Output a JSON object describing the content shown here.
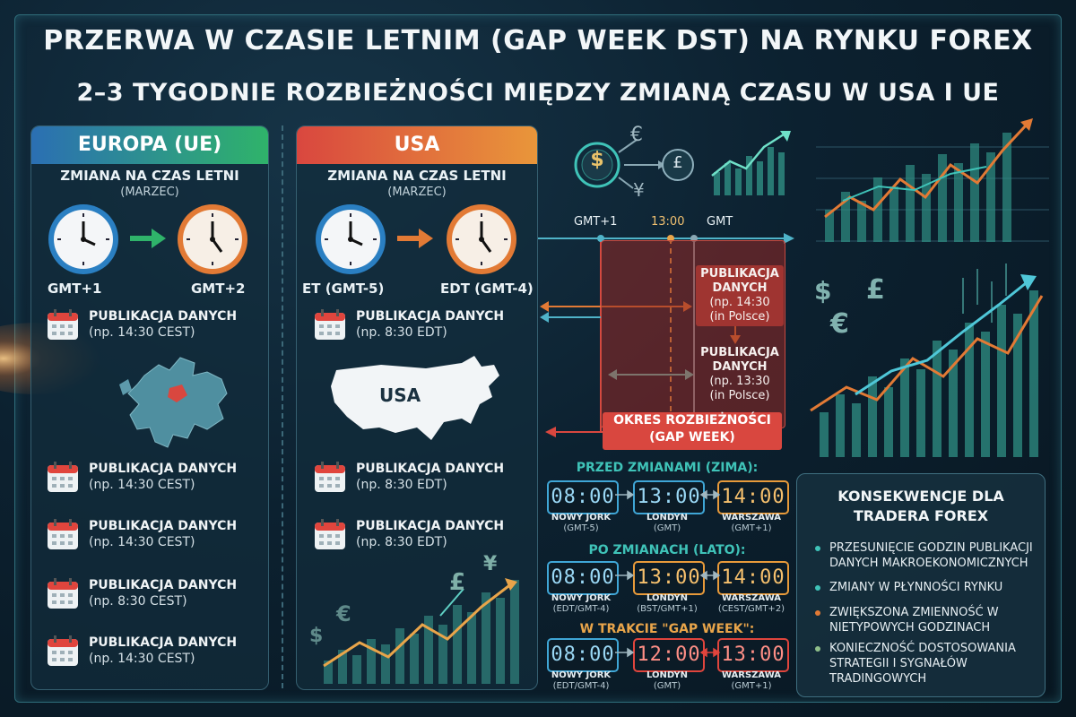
{
  "title": "PRZERWA W CZASIE LETNIM (GAP WEEK DST) NA RYNKU FOREX",
  "subtitle": "2–3 TYGODNIE ROZBIEŻNOŚCI MIĘDZY ZMIANĄ CZASU W USA I UE",
  "colors": {
    "green": "#2fb36a",
    "orange": "#e27a35",
    "red": "#d9473f",
    "teal": "#3fc3b8",
    "blue": "#3fa6d6"
  },
  "europe": {
    "header": "EUROPA (UE)",
    "change_label": "ZMIANA NA CZAS LETNI",
    "month": "(MARZEC)",
    "tz_from": "GMT+1",
    "tz_to": "GMT+2",
    "map_icon": "europe-map-icon",
    "publications": [
      {
        "title": "PUBLIKACJA DANYCH",
        "time": "(np. 14:30 CEST)"
      },
      {
        "title": "PUBLIKACJA DANYCH",
        "time": "(np. 14:30 CEST)"
      },
      {
        "title": "PUBLIKACJA DANYCH",
        "time": "(np. 14:30 CEST)"
      },
      {
        "title": "PUBLIKACJA DANYCH",
        "time": "(np. 8:30 CEST)"
      },
      {
        "title": "PUBLIKACJA DANYCH",
        "time": "(np. 14:30 CEST)"
      }
    ]
  },
  "usa": {
    "header": "USA",
    "change_label": "ZMIANA NA CZAS LETNI",
    "month": "(MARZEC)",
    "tz_from": "ET (GMT-5)",
    "tz_to": "EDT (GMT-4)",
    "map_label": "USA",
    "publications": [
      {
        "title": "PUBLIKACJA DANYCH",
        "time": "(np. 8:30 EDT)"
      },
      {
        "title": "PUBLIKACJA DANYCH",
        "time": "(np. 8:30 EDT)"
      },
      {
        "title": "PUBLIKACJA DANYCH",
        "time": "(np. 8:30 EDT)"
      }
    ],
    "currency_symbols": [
      "$",
      "€",
      "£",
      "¥"
    ]
  },
  "timeline": {
    "label_gmt1": "GMT+1",
    "label_time": "13:00",
    "label_gmt": "GMT",
    "pub1": {
      "title": "PUBLIKACJA",
      "title2": "DANYCH",
      "time": "(np. 14:30",
      "place": "(in Polsce)"
    },
    "pub2": {
      "title": "PUBLIKACJA",
      "title2": "DANYCH",
      "time": "(np. 13:30",
      "place": "(in Polsce)"
    },
    "gap_label_1": "OKRES ROZBIEŻNOŚCI",
    "gap_label_2": "(GAP WEEK)"
  },
  "comparisons": [
    {
      "label": "PRZED ZMIANAMI (ZIMA):",
      "color": "#3fc3b8",
      "clocks": [
        {
          "time": "08:00",
          "city": "NOWY JORK",
          "tz": "(GMT-5)"
        },
        {
          "time": "13:00",
          "city": "LONDYN",
          "tz": "(GMT)"
        },
        {
          "time": "14:00",
          "city": "WARSZAWA",
          "tz": "(GMT+1)"
        }
      ]
    },
    {
      "label": "PO ZMIANACH (LATO):",
      "color": "#3fc3b8",
      "clocks": [
        {
          "time": "08:00",
          "city": "NOWY JORK",
          "tz": "(EDT/GMT-4)"
        },
        {
          "time": "13:00",
          "city": "LONDYN",
          "tz": "(BST/GMT+1)"
        },
        {
          "time": "14:00",
          "city": "WARSZAWA",
          "tz": "(CEST/GMT+2)"
        }
      ]
    },
    {
      "label": "W TRAKCIE \"GAP WEEK\":",
      "color": "#e9a54a",
      "clocks": [
        {
          "time": "08:00",
          "city": "NOWY JORK",
          "tz": "(EDT/GMT-4)"
        },
        {
          "time": "12:00",
          "city": "LONDYN",
          "tz": "(GMT)"
        },
        {
          "time": "13:00",
          "city": "WARSZAWA",
          "tz": "(GMT+1)"
        }
      ]
    }
  ],
  "consequences": {
    "title_1": "KONSEKWENCJE DLA",
    "title_2": "TRADERA FOREX",
    "items": [
      {
        "text": "PRZESUNIĘCIE GODZIN PUBLIKACJI DANYCH MAKROEKONOMICZNYCH",
        "color": "#3fc3b8"
      },
      {
        "text": "ZMIANY W PŁYNNOŚCI RYNKU",
        "color": "#3fc3b8"
      },
      {
        "text": "ZWIĘKSZONA ZMIENNOŚĆ W NIETYPOWYCH GODZINACH",
        "color": "#e27a35"
      },
      {
        "text": "KONIECZNOŚĆ DOSTOSOWANIA STRATEGII I SYGNAŁÓW TRADINGOWYCH",
        "color": "#8fbf8a"
      }
    ]
  },
  "icons": {
    "dollar_coin": "$",
    "euro_coin": "€",
    "pound_coin": "£",
    "yen_coin": "¥",
    "right_currency": [
      "$",
      "£",
      "€"
    ]
  }
}
